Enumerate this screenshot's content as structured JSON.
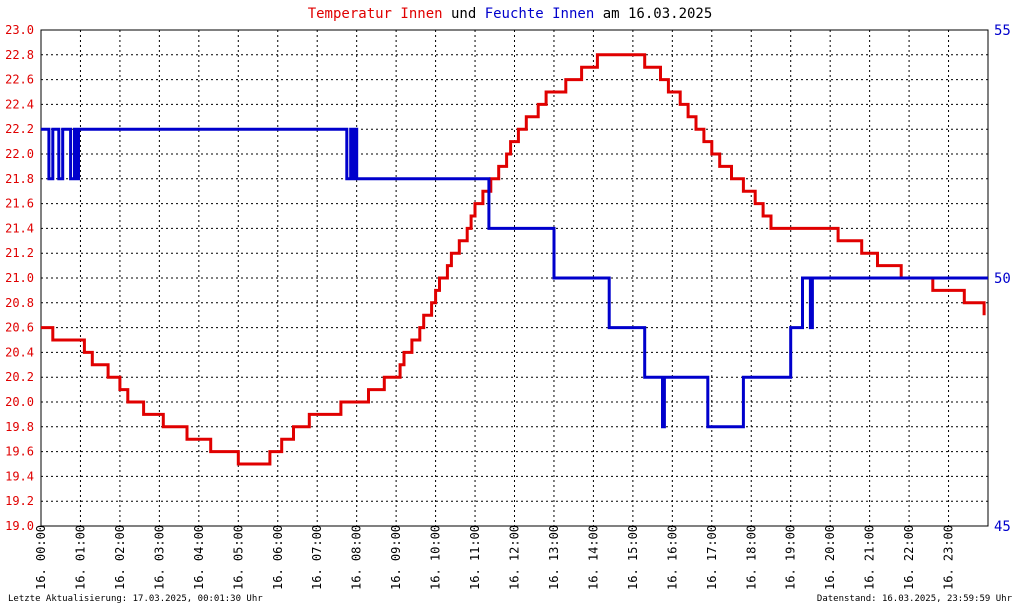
{
  "chart_data": {
    "type": "line",
    "title": {
      "segments": [
        {
          "text": "Temperatur Innen",
          "color": "#e00000"
        },
        {
          "text": " und ",
          "color": "#000000"
        },
        {
          "text": "Feuchte Innen",
          "color": "#0000cc"
        },
        {
          "text": " am 16.03.2025",
          "color": "#000000"
        }
      ]
    },
    "x_ticks": [
      "16. 00:00",
      "16. 01:00",
      "16. 02:00",
      "16. 03:00",
      "16. 04:00",
      "16. 05:00",
      "16. 06:00",
      "16. 07:00",
      "16. 08:00",
      "16. 09:00",
      "16. 10:00",
      "16. 11:00",
      "16. 12:00",
      "16. 13:00",
      "16. 14:00",
      "16. 15:00",
      "16. 16:00",
      "16. 17:00",
      "16. 18:00",
      "16. 19:00",
      "16. 20:00",
      "16. 21:00",
      "16. 22:00",
      "16. 23:00"
    ],
    "xlim_hours": [
      0,
      24
    ],
    "y_left": {
      "ticks": [
        "23.0",
        "22.8",
        "22.6",
        "22.4",
        "22.2",
        "22.0",
        "21.8",
        "21.6",
        "21.4",
        "21.2",
        "21.0",
        "20.8",
        "20.6",
        "20.4",
        "20.2",
        "20.0",
        "19.8",
        "19.6",
        "19.4",
        "19.2",
        "19.0"
      ],
      "range": [
        19.0,
        23.0
      ],
      "color": "#e00000"
    },
    "y_right": {
      "ticks": [
        "55",
        "50",
        "45"
      ],
      "range": [
        45,
        55
      ],
      "color": "#0000cc"
    },
    "grid": true,
    "series": [
      {
        "name": "Temperatur Innen",
        "axis": "left",
        "color": "#e00000",
        "points": [
          [
            0,
            20.6
          ],
          [
            0.3,
            20.5
          ],
          [
            0.9,
            20.5
          ],
          [
            1.1,
            20.4
          ],
          [
            1.3,
            20.3
          ],
          [
            1.6,
            20.3
          ],
          [
            1.7,
            20.2
          ],
          [
            1.9,
            20.2
          ],
          [
            2.0,
            20.1
          ],
          [
            2.2,
            20.0
          ],
          [
            2.5,
            20.0
          ],
          [
            2.6,
            19.9
          ],
          [
            2.8,
            19.9
          ],
          [
            3.0,
            19.9
          ],
          [
            3.1,
            19.8
          ],
          [
            3.4,
            19.8
          ],
          [
            3.6,
            19.8
          ],
          [
            3.7,
            19.7
          ],
          [
            4.0,
            19.7
          ],
          [
            4.2,
            19.7
          ],
          [
            4.3,
            19.6
          ],
          [
            4.9,
            19.6
          ],
          [
            5.0,
            19.5
          ],
          [
            5.5,
            19.5
          ],
          [
            5.7,
            19.5
          ],
          [
            5.8,
            19.6
          ],
          [
            6.0,
            19.6
          ],
          [
            6.1,
            19.7
          ],
          [
            6.3,
            19.7
          ],
          [
            6.4,
            19.8
          ],
          [
            6.7,
            19.8
          ],
          [
            6.8,
            19.9
          ],
          [
            7.2,
            19.9
          ],
          [
            7.5,
            19.9
          ],
          [
            7.6,
            20.0
          ],
          [
            7.9,
            20.0
          ],
          [
            8.2,
            20.0
          ],
          [
            8.3,
            20.1
          ],
          [
            8.5,
            20.1
          ],
          [
            8.7,
            20.2
          ],
          [
            8.9,
            20.2
          ],
          [
            9.1,
            20.3
          ],
          [
            9.2,
            20.4
          ],
          [
            9.4,
            20.5
          ],
          [
            9.6,
            20.6
          ],
          [
            9.7,
            20.7
          ],
          [
            9.9,
            20.8
          ],
          [
            10.0,
            20.9
          ],
          [
            10.1,
            21.0
          ],
          [
            10.3,
            21.1
          ],
          [
            10.4,
            21.2
          ],
          [
            10.6,
            21.3
          ],
          [
            10.8,
            21.4
          ],
          [
            10.9,
            21.5
          ],
          [
            11.0,
            21.6
          ],
          [
            11.2,
            21.7
          ],
          [
            11.4,
            21.8
          ],
          [
            11.6,
            21.9
          ],
          [
            11.8,
            22.0
          ],
          [
            11.9,
            22.1
          ],
          [
            12.1,
            22.2
          ],
          [
            12.3,
            22.3
          ],
          [
            12.6,
            22.4
          ],
          [
            12.8,
            22.5
          ],
          [
            13.1,
            22.5
          ],
          [
            13.3,
            22.6
          ],
          [
            13.6,
            22.6
          ],
          [
            13.7,
            22.7
          ],
          [
            14.0,
            22.7
          ],
          [
            14.1,
            22.8
          ],
          [
            14.5,
            22.8
          ],
          [
            14.8,
            22.8
          ],
          [
            15.1,
            22.8
          ],
          [
            15.3,
            22.7
          ],
          [
            15.5,
            22.7
          ],
          [
            15.7,
            22.6
          ],
          [
            15.9,
            22.5
          ],
          [
            16.0,
            22.5
          ],
          [
            16.2,
            22.4
          ],
          [
            16.4,
            22.3
          ],
          [
            16.6,
            22.2
          ],
          [
            16.8,
            22.1
          ],
          [
            17.0,
            22.0
          ],
          [
            17.2,
            21.9
          ],
          [
            17.4,
            21.9
          ],
          [
            17.5,
            21.8
          ],
          [
            17.6,
            21.8
          ],
          [
            17.8,
            21.7
          ],
          [
            18.1,
            21.6
          ],
          [
            18.3,
            21.5
          ],
          [
            18.5,
            21.4
          ],
          [
            19.0,
            21.4
          ],
          [
            19.5,
            21.4
          ],
          [
            20.0,
            21.4
          ],
          [
            20.2,
            21.3
          ],
          [
            20.6,
            21.3
          ],
          [
            20.8,
            21.2
          ],
          [
            21.0,
            21.2
          ],
          [
            21.2,
            21.1
          ],
          [
            21.5,
            21.1
          ],
          [
            21.8,
            21.0
          ],
          [
            22.1,
            21.0
          ],
          [
            22.4,
            21.0
          ],
          [
            22.6,
            20.9
          ],
          [
            23.0,
            20.9
          ],
          [
            23.2,
            20.9
          ],
          [
            23.4,
            20.8
          ],
          [
            23.8,
            20.8
          ],
          [
            23.9,
            20.7
          ]
        ]
      },
      {
        "name": "Feuchte Innen",
        "axis": "right",
        "color": "#0000cc",
        "points": [
          [
            0,
            53
          ],
          [
            0.2,
            52
          ],
          [
            0.3,
            53
          ],
          [
            0.45,
            52
          ],
          [
            0.55,
            53
          ],
          [
            0.75,
            52
          ],
          [
            0.85,
            53
          ],
          [
            0.9,
            52
          ],
          [
            0.95,
            53
          ],
          [
            7.7,
            53
          ],
          [
            7.75,
            52
          ],
          [
            7.85,
            53
          ],
          [
            7.9,
            52
          ],
          [
            7.95,
            53
          ],
          [
            8.0,
            52
          ],
          [
            8.3,
            52
          ],
          [
            11.3,
            52
          ],
          [
            11.35,
            51
          ],
          [
            13.0,
            51
          ],
          [
            13.0,
            50
          ],
          [
            14.4,
            50
          ],
          [
            14.4,
            49
          ],
          [
            15.3,
            49
          ],
          [
            15.3,
            48
          ],
          [
            15.75,
            48
          ],
          [
            15.75,
            47
          ],
          [
            15.8,
            48
          ],
          [
            16.9,
            48
          ],
          [
            16.9,
            47
          ],
          [
            17.8,
            47
          ],
          [
            17.8,
            48
          ],
          [
            19.0,
            48
          ],
          [
            19.0,
            49
          ],
          [
            19.3,
            49
          ],
          [
            19.3,
            50
          ],
          [
            19.5,
            50
          ],
          [
            19.5,
            49
          ],
          [
            19.55,
            50
          ],
          [
            24.0,
            50
          ]
        ]
      }
    ]
  },
  "footer": {
    "left": "Letzte Aktualisierung: 17.03.2025, 00:01:30 Uhr",
    "right": "Datenstand: 16.03.2025, 23:59:59 Uhr"
  }
}
